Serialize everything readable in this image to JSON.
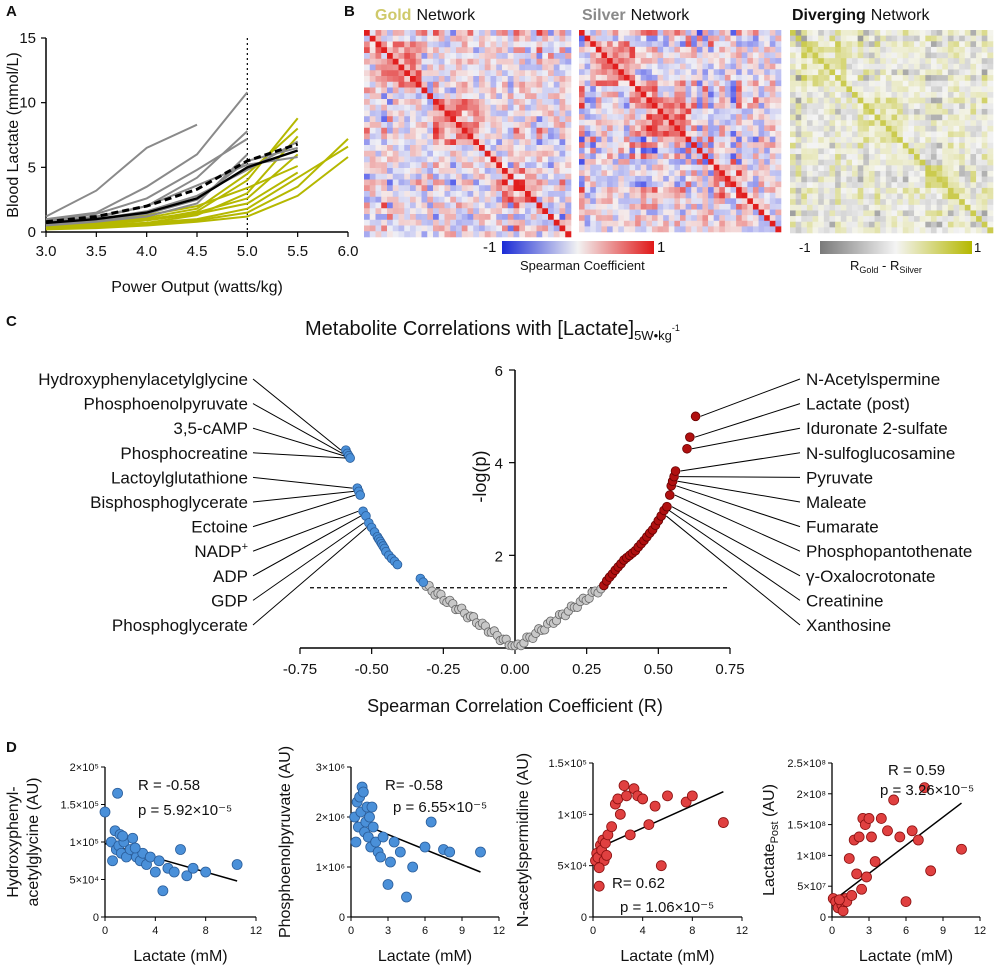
{
  "panels": {
    "a": "A",
    "b": "B",
    "c": "C",
    "d": "D"
  },
  "colors": {
    "gold": "#b5b800",
    "silver": "#8a8a8a",
    "blue": "#4a90d9",
    "red": "#b01010",
    "redbright": "#e04040",
    "grey_point": "#c8c8c8"
  },
  "panel_b": {
    "gold_word": "Gold",
    "silver_word": "Silver",
    "diverging_word": "Diverging",
    "network_word": "Network",
    "scale_min": "-1",
    "scale_max": "1",
    "scale_label": "Spearman  Coefficient",
    "div_scale_min": "-1",
    "div_scale_max": "1",
    "div_label_r1": "R",
    "div_label_sub1": "Gold",
    "div_label_mid": " - R",
    "div_label_sub2": "Silver"
  },
  "panel_c_extra": {
    "title_main": "Metabolite Correlations with [Lactate]",
    "title_sub": "5W•kg",
    "title_sup": "-1",
    "nadp_main": "NADP",
    "nadp_sup": "+"
  },
  "panel_d_extra": {
    "d4_ylabel_main": "Lactate",
    "d4_ylabel_sub": "Post",
    "d4_ylabel_tail": " (AU)"
  },
  "chart_data": [
    {
      "id": "A",
      "type": "line",
      "title": "",
      "xlabel": "Power Output (watts/kg)",
      "ylabel": "Blood Lactate (mmol/L)",
      "xlim": [
        3.0,
        6.0
      ],
      "ylim": [
        0,
        15
      ],
      "xticks": [
        "3.0",
        "3.5",
        "4.0",
        "4.5",
        "5.0",
        "5.5",
        "6.0"
      ],
      "yticks": [
        "0",
        "5",
        "10",
        "15"
      ],
      "vline_x": 5.0,
      "series_silver": [
        {
          "x": [
            3.0,
            3.5,
            4.0,
            4.5,
            5.0
          ],
          "y": [
            1.0,
            1.5,
            3.5,
            6.0,
            10.8
          ]
        },
        {
          "x": [
            3.0,
            3.5,
            4.0,
            4.5
          ],
          "y": [
            1.2,
            3.2,
            6.5,
            8.3
          ]
        },
        {
          "x": [
            3.0,
            3.5,
            4.0,
            4.5,
            5.0
          ],
          "y": [
            0.8,
            1.2,
            2.0,
            4.2,
            7.8
          ]
        },
        {
          "x": [
            3.0,
            3.5,
            4.0,
            4.5,
            5.0,
            5.5
          ],
          "y": [
            0.7,
            1.0,
            1.6,
            2.8,
            4.8,
            7.0
          ]
        },
        {
          "x": [
            3.0,
            3.5,
            4.0,
            4.5,
            5.0,
            5.5
          ],
          "y": [
            0.6,
            0.9,
            1.4,
            2.5,
            5.5,
            6.5
          ]
        },
        {
          "x": [
            3.0,
            3.5,
            4.0,
            4.5,
            5.0
          ],
          "y": [
            0.5,
            0.8,
            1.2,
            2.2,
            6.0
          ]
        },
        {
          "x": [
            3.0,
            3.5,
            4.0,
            4.5,
            5.0
          ],
          "y": [
            0.9,
            1.4,
            2.6,
            4.8,
            7.2
          ]
        },
        {
          "x": [
            3.0,
            3.5,
            4.0,
            4.5,
            5.0,
            5.5
          ],
          "y": [
            0.6,
            1.1,
            2.0,
            3.6,
            5.2,
            5.8
          ]
        }
      ],
      "series_gold": [
        {
          "x": [
            3.0,
            3.5,
            4.0,
            4.5,
            5.0,
            5.5
          ],
          "y": [
            0.4,
            0.6,
            0.9,
            1.6,
            4.0,
            8.8
          ]
        },
        {
          "x": [
            3.0,
            3.5,
            4.0,
            4.5,
            5.0,
            5.5
          ],
          "y": [
            0.5,
            0.8,
            1.1,
            1.8,
            4.5,
            8.0
          ]
        },
        {
          "x": [
            3.0,
            3.5,
            4.0,
            4.5,
            5.0,
            5.5
          ],
          "y": [
            0.3,
            0.5,
            0.7,
            1.3,
            3.0,
            7.4
          ]
        },
        {
          "x": [
            3.0,
            3.5,
            4.0,
            4.5,
            5.0,
            5.5,
            6.0
          ],
          "y": [
            0.3,
            0.4,
            0.6,
            0.9,
            1.5,
            3.5,
            7.2
          ]
        },
        {
          "x": [
            3.0,
            3.5,
            4.0,
            4.5,
            5.0,
            5.5,
            6.0
          ],
          "y": [
            0.2,
            0.3,
            0.5,
            0.8,
            1.2,
            2.8,
            5.8
          ]
        },
        {
          "x": [
            3.0,
            3.5,
            4.0,
            4.5,
            5.0,
            5.5,
            6.0
          ],
          "y": [
            0.3,
            0.5,
            0.7,
            1.0,
            1.8,
            4.2,
            6.6
          ]
        },
        {
          "x": [
            3.0,
            3.5,
            4.0,
            4.5,
            5.0,
            5.5
          ],
          "y": [
            0.4,
            0.7,
            1.0,
            1.5,
            2.6,
            6.0
          ]
        },
        {
          "x": [
            3.0,
            3.5,
            4.0,
            4.5,
            5.0,
            5.5
          ],
          "y": [
            0.5,
            0.9,
            1.3,
            2.0,
            3.4,
            5.1
          ]
        },
        {
          "x": [
            3.0,
            3.5,
            4.0,
            4.5,
            5.0,
            5.5
          ],
          "y": [
            0.3,
            0.6,
            0.9,
            1.4,
            2.2,
            4.6
          ]
        }
      ],
      "mean_silver": {
        "x": [
          3.0,
          3.5,
          4.0,
          4.5,
          5.0,
          5.5
        ],
        "y": [
          0.8,
          1.2,
          2.0,
          3.3,
          5.5,
          6.8
        ]
      },
      "mean_gold": {
        "x": [
          3.0,
          3.5,
          4.0,
          4.5,
          5.0,
          5.5
        ],
        "y": [
          0.7,
          1.0,
          1.5,
          2.6,
          5.0,
          6.3
        ]
      }
    },
    {
      "id": "C",
      "type": "scatter",
      "title": "Metabolite Correlations with [Lactate]5W•kg-1",
      "xlabel": "Spearman Correlation Coefficient (R)",
      "ylabel": "-log(p)",
      "xlim": [
        -0.75,
        0.75
      ],
      "ylim": [
        0,
        6
      ],
      "xticks": [
        "-0.75",
        "-0.50",
        "-0.25",
        "0.00",
        "0.25",
        "0.50",
        "0.75"
      ],
      "yticks": [
        "2",
        "4",
        "6"
      ],
      "significance_line": 1.3,
      "negative_labels": [
        "Hydroxyphenylacetylglycine",
        "Phosphoenolpyruvate",
        "3,5-cAMP",
        "Phosphocreatine",
        "Lactoylglutathione",
        "Bisphosphoglycerate",
        "Ectoine",
        "NADP+",
        "ADP",
        "GDP",
        "Phosphoglycerate"
      ],
      "positive_labels": [
        "N-Acetylspermine",
        "Lactate (post)",
        "Iduronate 2-sulfate",
        "N-sulfoglucosamine",
        "Pyruvate",
        "Maleate",
        "Fumarate",
        "Phosphopantothenate",
        "γ-Oxalocrotonate",
        "Creatinine",
        "Xanthosine"
      ],
      "negative_points": {
        "x": [
          -0.59,
          -0.585,
          -0.58,
          -0.575,
          -0.55,
          -0.545,
          -0.54,
          -0.53,
          -0.52,
          -0.51,
          -0.5,
          -0.49,
          -0.48,
          -0.475,
          -0.47,
          -0.465,
          -0.46,
          -0.455,
          -0.45,
          -0.44,
          -0.43,
          -0.42,
          -0.41,
          -0.33,
          -0.32
        ],
        "y": [
          4.27,
          4.2,
          4.15,
          4.1,
          3.45,
          3.38,
          3.3,
          2.95,
          2.85,
          2.7,
          2.6,
          2.5,
          2.4,
          2.35,
          2.3,
          2.25,
          2.2,
          2.15,
          2.08,
          2.0,
          1.93,
          1.87,
          1.8,
          1.5,
          1.42
        ]
      },
      "positive_points": {
        "x": [
          0.31,
          0.32,
          0.33,
          0.34,
          0.35,
          0.36,
          0.37,
          0.38,
          0.39,
          0.4,
          0.41,
          0.42,
          0.43,
          0.44,
          0.45,
          0.46,
          0.47,
          0.48,
          0.49,
          0.5,
          0.51,
          0.52,
          0.53,
          0.54,
          0.545,
          0.55,
          0.555,
          0.56,
          0.6,
          0.61,
          0.63
        ],
        "y": [
          1.35,
          1.45,
          1.53,
          1.6,
          1.68,
          1.75,
          1.82,
          1.9,
          1.95,
          2.0,
          2.05,
          2.1,
          2.18,
          2.25,
          2.32,
          2.4,
          2.48,
          2.55,
          2.65,
          2.75,
          2.85,
          2.97,
          3.05,
          3.3,
          3.5,
          3.6,
          3.7,
          3.82,
          4.3,
          4.55,
          5.0
        ]
      }
    },
    {
      "id": "D1",
      "type": "scatter",
      "xlabel": "Lactate (mM)",
      "ylabel": "Hydroxyphenyl-\nacetylglycine (AU)",
      "ylabel_line1": "Hydroxyphenyl-",
      "ylabel_line2": "acetylglycine (AU)",
      "xlim": [
        0,
        12
      ],
      "ylim": [
        0,
        200000
      ],
      "xticks": [
        "0",
        "4",
        "8",
        "12"
      ],
      "yticks": [
        "0",
        "5×10⁴",
        "1×10⁵",
        "1.5×10⁵",
        "2×10⁵"
      ],
      "annotation_r": "R = -0.58",
      "annotation_p": "p = 5.92×10⁻⁵",
      "fit": {
        "x": [
          0,
          10.5
        ],
        "y": [
          98000,
          48000
        ]
      },
      "points": {
        "x": [
          0,
          0.5,
          0.8,
          0.9,
          1.0,
          1.1,
          1.2,
          1.3,
          1.5,
          1.7,
          2.0,
          2.2,
          2.5,
          2.8,
          3.0,
          3.3,
          3.6,
          4.0,
          4.3,
          4.6,
          5.0,
          5.5,
          6.0,
          6.5,
          7.0,
          8.0,
          10.5,
          0.6,
          1.4,
          2.4
        ],
        "y": [
          140000,
          100000,
          115000,
          90000,
          165000,
          95000,
          110000,
          85000,
          100000,
          80000,
          90000,
          105000,
          80000,
          75000,
          85000,
          70000,
          80000,
          60000,
          75000,
          35000,
          65000,
          60000,
          90000,
          55000,
          65000,
          60000,
          70000,
          75000,
          108000,
          92000
        ]
      }
    },
    {
      "id": "D2",
      "type": "scatter",
      "xlabel": "Lactate (mM)",
      "ylabel": "Phosphoenolpyruvate (AU)",
      "xlim": [
        0,
        12
      ],
      "ylim": [
        0,
        3000000
      ],
      "xticks": [
        "0",
        "3",
        "6",
        "9",
        "12"
      ],
      "yticks": [
        "0",
        "1×10⁶",
        "2×10⁶",
        "3×10⁶"
      ],
      "annotation_r": "R= -0.58",
      "annotation_p": "p = 6.55×10⁻⁵",
      "fit": {
        "x": [
          0,
          10.5
        ],
        "y": [
          1950000,
          900000
        ]
      },
      "points": {
        "x": [
          0.3,
          0.5,
          0.6,
          0.7,
          0.8,
          0.9,
          1.0,
          1.1,
          1.2,
          1.3,
          1.4,
          1.5,
          1.6,
          1.8,
          2.0,
          2.2,
          2.4,
          2.6,
          3.0,
          3.2,
          3.5,
          4.0,
          4.5,
          5.0,
          6.0,
          6.5,
          7.5,
          8.0,
          10.5,
          0.4,
          1.7
        ],
        "y": [
          2000000,
          2300000,
          1800000,
          2400000,
          2100000,
          2600000,
          2500000,
          1700000,
          1900000,
          2200000,
          1600000,
          2000000,
          1400000,
          1800000,
          1500000,
          1300000,
          1200000,
          1600000,
          650000,
          1100000,
          1500000,
          1300000,
          400000,
          1000000,
          1400000,
          1900000,
          1350000,
          1300000,
          1300000,
          1500000,
          2200000
        ]
      }
    },
    {
      "id": "D3",
      "type": "scatter",
      "xlabel": "Lactate (mM)",
      "ylabel": "N-acetylspermidine (AU)",
      "xlim": [
        0,
        12
      ],
      "ylim": [
        0,
        150000
      ],
      "xticks": [
        "0",
        "4",
        "8",
        "12"
      ],
      "yticks": [
        "0",
        "5×10⁴",
        "1×10⁵",
        "1.5×10⁵"
      ],
      "annotation_r": "R= 0.62",
      "annotation_p": "p = 1.06×10⁻⁵",
      "fit": {
        "x": [
          0,
          10.5
        ],
        "y": [
          65000,
          122000
        ]
      },
      "points": {
        "x": [
          0.2,
          0.3,
          0.4,
          0.5,
          0.6,
          0.7,
          0.8,
          0.9,
          1.0,
          1.1,
          1.2,
          1.5,
          1.8,
          2.0,
          2.2,
          2.5,
          2.7,
          3.0,
          3.3,
          3.6,
          4.0,
          4.5,
          5.0,
          5.5,
          6.0,
          7.5,
          8.0,
          10.5,
          0.5
        ],
        "y": [
          55000,
          62000,
          58000,
          30000,
          70000,
          65000,
          75000,
          55000,
          72000,
          60000,
          80000,
          88000,
          110000,
          115000,
          100000,
          128000,
          118000,
          80000,
          125000,
          118000,
          115000,
          90000,
          108000,
          50000,
          118000,
          112000,
          118000,
          92000,
          48000
        ]
      }
    },
    {
      "id": "D4",
      "type": "scatter",
      "xlabel": "Lactate (mM)",
      "ylabel": "LactatePost (AU)",
      "xlim": [
        0,
        12
      ],
      "ylim": [
        0,
        250000000
      ],
      "xticks": [
        "0",
        "3",
        "6",
        "9",
        "12"
      ],
      "yticks": [
        "0",
        "5×10⁷",
        "1×10⁸",
        "1.5×10⁸",
        "2×10⁸",
        "2.5×10⁸"
      ],
      "annotation_r": "R = 0.59",
      "annotation_p": "p = 3.26×10⁻⁵",
      "fit": {
        "x": [
          0,
          10.5
        ],
        "y": [
          25000000,
          185000000
        ]
      },
      "points": {
        "x": [
          0.1,
          0.3,
          0.5,
          0.7,
          0.8,
          0.9,
          1.0,
          1.1,
          1.2,
          1.4,
          1.6,
          1.8,
          2.0,
          2.2,
          2.5,
          2.7,
          2.8,
          3.0,
          3.2,
          3.5,
          4.0,
          4.5,
          5.0,
          5.5,
          6.0,
          6.5,
          7.0,
          7.5,
          8.0,
          10.5,
          0.6,
          2.4
        ],
        "y": [
          30000000,
          25000000,
          15000000,
          28000000,
          20000000,
          10000000,
          25000000,
          30000000,
          25000000,
          95000000,
          35000000,
          125000000,
          70000000,
          130000000,
          160000000,
          150000000,
          65000000,
          160000000,
          130000000,
          90000000,
          160000000,
          140000000,
          190000000,
          130000000,
          25000000,
          140000000,
          125000000,
          210000000,
          75000000,
          110000000,
          28000000,
          45000000
        ]
      }
    }
  ]
}
